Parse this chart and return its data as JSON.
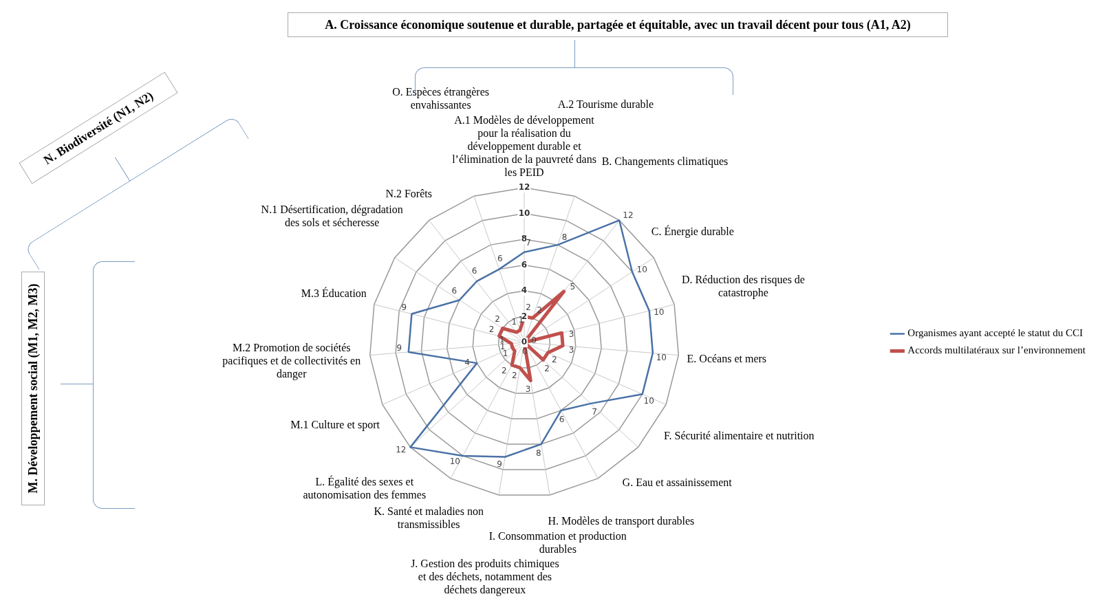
{
  "chart_data": {
    "type": "radar",
    "categories": [
      "A.1 Modèles de développement pour la réalisation du développement durable et l’élimination de la pauvreté dans les PEID",
      "A.2 Tourisme durable",
      "B. Changements climatiques",
      "C. Énergie durable",
      "D. Réduction des risques de catastrophe",
      "E. Océans et mers",
      "F. Sécurité alimentaire et nutrition",
      "G. Eau et assainissement",
      "H. Modèles de transport durables",
      "I. Consommation et production durables",
      "J. Gestion des produits chimiques et des déchets, notamment des déchets dangereux",
      "K. Santé et maladies non transmissibles",
      "L. Égalité des sexes et autonomisation des femmes",
      "M.1 Culture et sport",
      "M.2 Promotion de sociétés pacifiques et de collectivités en danger",
      "M.3 Éducation",
      "N.1 Désertification, dégradation des sols et sécheresse",
      "N.2 Forêts",
      "O. Espèces étrangères envahissantes"
    ],
    "series": [
      {
        "name": "Organismes ayant accepté le statut du CCI",
        "color": "#4a72a6",
        "values": [
          7,
          8,
          12,
          10,
          10,
          10,
          10,
          7,
          6,
          8,
          9,
          10,
          12,
          4,
          9,
          9,
          6,
          6,
          6
        ]
      },
      {
        "name": "Accords multilatéraux sur l’environnement",
        "color": "#c0504d",
        "values": [
          2,
          2,
          5,
          0,
          3,
          3,
          2,
          2,
          0,
          3,
          2,
          2,
          1,
          1,
          1,
          2,
          2,
          1,
          1
        ]
      }
    ],
    "ylim": [
      0,
      12
    ],
    "yticks": [
      0,
      2,
      4,
      6,
      8,
      10,
      12
    ],
    "grid": true,
    "legend": "right",
    "marker": "none",
    "data_labels": true,
    "annotations": [
      "A. Croissance économique soutenue et durable, partagée et équitable, avec un travail décent pour tous (A1, A2)",
      "N. Biodiversité (N1, N2)",
      "M. Développement social (M1, M2, M3)"
    ]
  }
}
